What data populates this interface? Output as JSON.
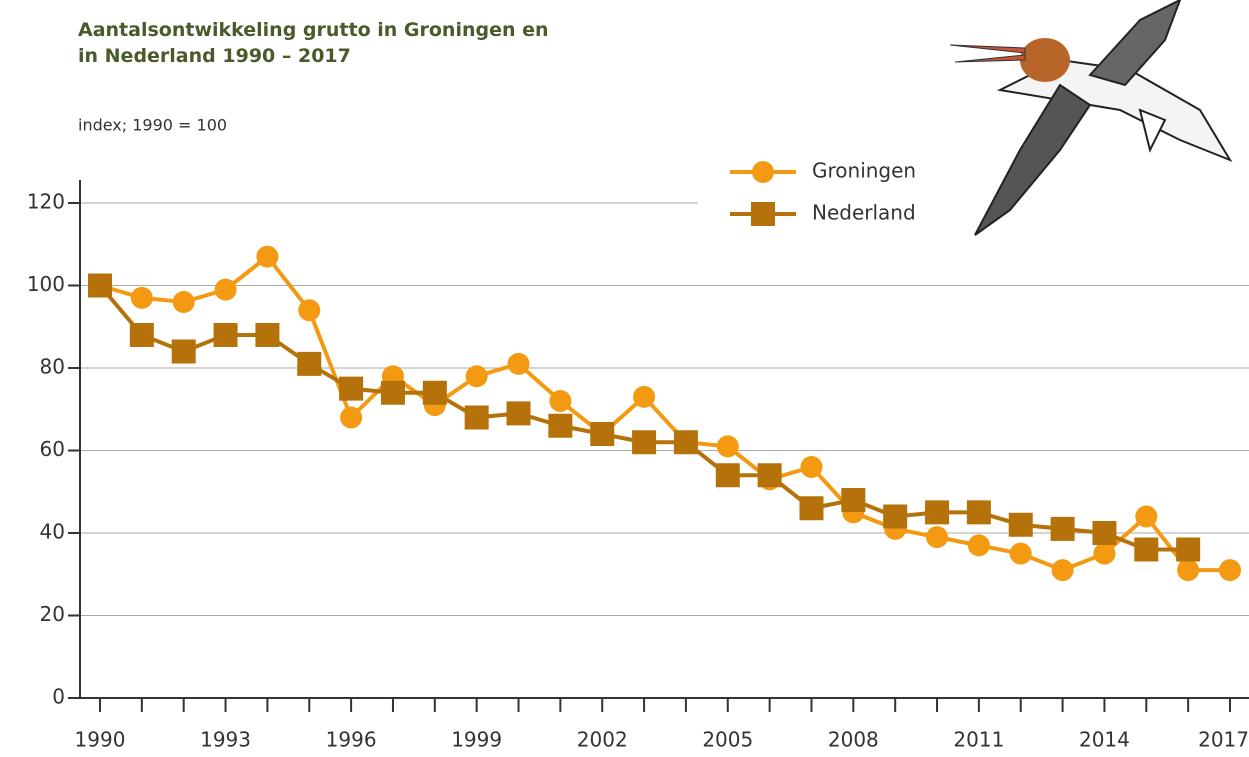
{
  "chart_data": {
    "type": "line",
    "title": "Aantalsontwikkeling grutto in Groningen en in Nederland 1990 – 2017",
    "subtitle": "index; 1990 = 100",
    "x": [
      1990,
      1991,
      1992,
      1993,
      1994,
      1995,
      1996,
      1997,
      1998,
      1999,
      2000,
      2001,
      2002,
      2003,
      2004,
      2005,
      2006,
      2007,
      2008,
      2009,
      2010,
      2011,
      2012,
      2013,
      2014,
      2015,
      2016,
      2017
    ],
    "series": [
      {
        "name": "Groningen",
        "color": "#f39a12",
        "marker": "circle",
        "values": [
          100,
          97,
          96,
          99,
          107,
          94,
          68,
          78,
          71,
          78,
          81,
          72,
          64,
          73,
          62,
          61,
          53,
          56,
          45,
          41,
          39,
          37,
          35,
          31,
          35,
          44,
          31,
          31
        ]
      },
      {
        "name": "Nederland",
        "color": "#b5720a",
        "marker": "square",
        "values": [
          100,
          88,
          84,
          88,
          88,
          81,
          75,
          74,
          74,
          68,
          69,
          66,
          64,
          62,
          62,
          54,
          54,
          46,
          48,
          44,
          45,
          45,
          42,
          41,
          40,
          36,
          36,
          null
        ]
      }
    ],
    "xlim": [
      1990,
      2017
    ],
    "xticks": [
      1990,
      1993,
      1996,
      1999,
      2002,
      2005,
      2008,
      2011,
      2014,
      2017
    ],
    "xminor_ticks": [
      1991,
      1992,
      1994,
      1995,
      1997,
      1998,
      2000,
      2001,
      2003,
      2004,
      2006,
      2007,
      2009,
      2010,
      2012,
      2013,
      2015,
      2016
    ],
    "ylim": [
      0,
      120
    ],
    "yticks": [
      0,
      20,
      40,
      60,
      80,
      100,
      120
    ],
    "grid": true
  }
}
